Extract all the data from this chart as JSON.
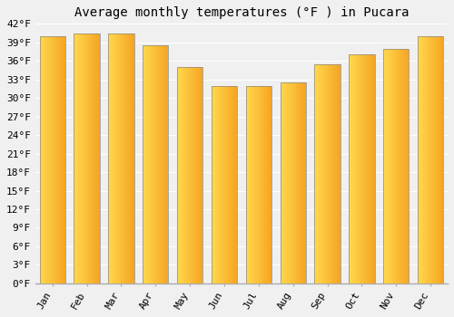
{
  "title": "Average monthly temperatures (°F ) in Pucara",
  "months": [
    "Jan",
    "Feb",
    "Mar",
    "Apr",
    "May",
    "Jun",
    "Jul",
    "Aug",
    "Sep",
    "Oct",
    "Nov",
    "Dec"
  ],
  "values": [
    40.0,
    40.5,
    40.5,
    38.5,
    35.0,
    32.0,
    32.0,
    32.5,
    35.5,
    37.0,
    38.0,
    40.0
  ],
  "bar_color_left": "#FFD84D",
  "bar_color_right": "#F5A623",
  "bar_edge_color": "#888888",
  "ylim": [
    0,
    42
  ],
  "ytick_step": 3,
  "background_color": "#f0f0f0",
  "grid_color": "#ffffff",
  "title_fontsize": 10,
  "tick_fontsize": 8,
  "title_font": "monospace",
  "bar_width": 0.75
}
